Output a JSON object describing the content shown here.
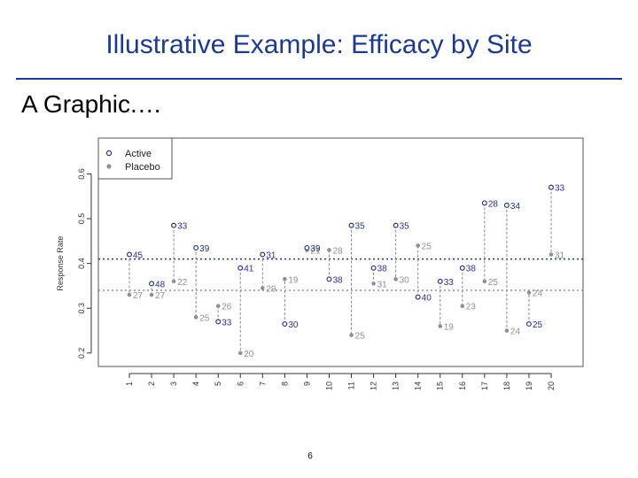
{
  "slide": {
    "title": "Illustrative Example: Efficacy by Site",
    "subtitle": "A Graphic.…",
    "page_number": "6"
  },
  "colors": {
    "title": "#1f3a8a",
    "active": "#2b2f8f",
    "placebo": "#909090"
  },
  "chart_data": {
    "type": "scatter",
    "ylabel": "Response Rate",
    "xlabel": "",
    "ylim": [
      0.17,
      0.68
    ],
    "yticks": [
      "0.2",
      "0.3",
      "0.4",
      "0.5",
      "0.6"
    ],
    "categories": [
      "1",
      "2",
      "3",
      "4",
      "5",
      "6",
      "7",
      "8",
      "9",
      "10",
      "11",
      "12",
      "13",
      "14",
      "15",
      "16",
      "17",
      "18",
      "19",
      "20"
    ],
    "legend": {
      "position": "top-left",
      "entries": [
        "Active",
        "Placebo"
      ]
    },
    "reference_lines": {
      "active_overall": 0.41,
      "placebo_overall": 0.34
    },
    "series": [
      {
        "name": "Active",
        "values": [
          0.42,
          0.355,
          0.485,
          0.435,
          0.27,
          0.39,
          0.42,
          0.265,
          0.435,
          0.365,
          0.485,
          0.39,
          0.485,
          0.325,
          0.36,
          0.39,
          0.535,
          0.53,
          0.265,
          0.57
        ],
        "labels": [
          "45",
          "48",
          "33",
          "39",
          "33",
          "41",
          "31",
          "30",
          "39",
          "38",
          "35",
          "38",
          "35",
          "40",
          "33",
          "38",
          "28",
          "34",
          "25",
          "33"
        ]
      },
      {
        "name": "Placebo",
        "values": [
          0.33,
          0.33,
          0.36,
          0.28,
          0.305,
          0.2,
          0.345,
          0.365,
          0.43,
          0.43,
          0.24,
          0.355,
          0.365,
          0.44,
          0.26,
          0.305,
          0.36,
          0.25,
          0.335,
          0.42
        ],
        "labels": [
          "27",
          "27",
          "22",
          "25",
          "26",
          "20",
          "29",
          "19",
          "21",
          "28",
          "25",
          "31",
          "30",
          "25",
          "19",
          "23",
          "25",
          "24",
          "24",
          "31"
        ]
      }
    ]
  }
}
